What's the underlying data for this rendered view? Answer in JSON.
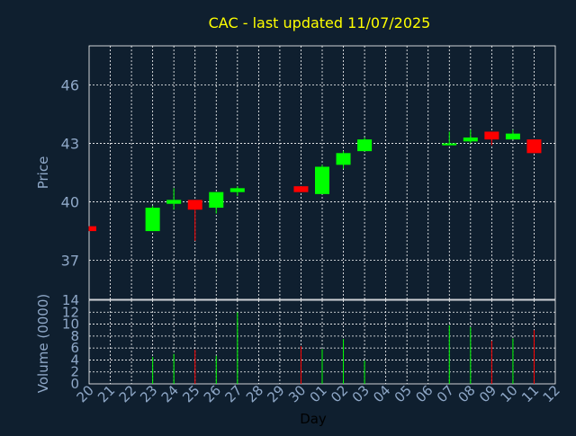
{
  "chart_data": {
    "type": "candlestick",
    "title": "CAC - last updated 11/07/2025",
    "ylabel": "Price",
    "volume_label": "Volume (0000)",
    "xlabel": "Day",
    "ylim": [
      35.0,
      48.0
    ],
    "volume_ylim": [
      0,
      14
    ],
    "yticks": [
      37,
      40,
      43,
      46
    ],
    "volume_ticks": [
      0,
      2,
      4,
      6,
      8,
      10,
      12,
      14
    ],
    "x_tick_labels": [
      "20",
      "21",
      "22",
      "23",
      "24",
      "25",
      "26",
      "27",
      "28",
      "29",
      "30",
      "01",
      "02",
      "03",
      "04",
      "05",
      "06",
      "07",
      "08",
      "09",
      "10",
      "11",
      "12"
    ],
    "up_color": "#00ff00",
    "down_color": "#ff0000",
    "candles": [
      {
        "day": "20",
        "open": 38.75,
        "high": 38.75,
        "low": 38.5,
        "close": 38.5,
        "volume": 0
      },
      {
        "day": "23",
        "open": 38.5,
        "high": 39.8,
        "low": 38.5,
        "close": 39.7,
        "volume": 4.5
      },
      {
        "day": "24",
        "open": 39.9,
        "high": 40.7,
        "low": 39.6,
        "close": 40.1,
        "volume": 5
      },
      {
        "day": "25",
        "open": 40.1,
        "high": 40.1,
        "low": 38.0,
        "close": 39.6,
        "volume": 5.7
      },
      {
        "day": "26",
        "open": 39.7,
        "high": 40.5,
        "low": 39.4,
        "close": 40.5,
        "volume": 4.7
      },
      {
        "day": "27",
        "open": 40.5,
        "high": 40.8,
        "low": 40.3,
        "close": 40.7,
        "volume": 12
      },
      {
        "day": "30",
        "open": 40.8,
        "high": 40.8,
        "low": 40.5,
        "close": 40.5,
        "volume": 6.3
      },
      {
        "day": "01",
        "open": 40.4,
        "high": 41.9,
        "low": 40.4,
        "close": 41.8,
        "volume": 5.8
      },
      {
        "day": "02",
        "open": 41.9,
        "high": 42.6,
        "low": 41.7,
        "close": 42.5,
        "volume": 7.5
      },
      {
        "day": "03",
        "open": 42.6,
        "high": 43.3,
        "low": 42.6,
        "close": 43.2,
        "volume": 3.9
      },
      {
        "day": "07",
        "open": 42.9,
        "high": 43.6,
        "low": 42.9,
        "close": 43.0,
        "volume": 9.8
      },
      {
        "day": "08",
        "open": 43.1,
        "high": 43.7,
        "low": 43.0,
        "close": 43.3,
        "volume": 9.5
      },
      {
        "day": "09",
        "open": 43.6,
        "high": 43.6,
        "low": 42.9,
        "close": 43.2,
        "volume": 7.2
      },
      {
        "day": "10",
        "open": 43.2,
        "high": 43.7,
        "low": 43.2,
        "close": 43.5,
        "volume": 7.6
      },
      {
        "day": "11",
        "open": 43.2,
        "high": 43.2,
        "low": 42.5,
        "close": 42.5,
        "volume": 9
      }
    ]
  }
}
